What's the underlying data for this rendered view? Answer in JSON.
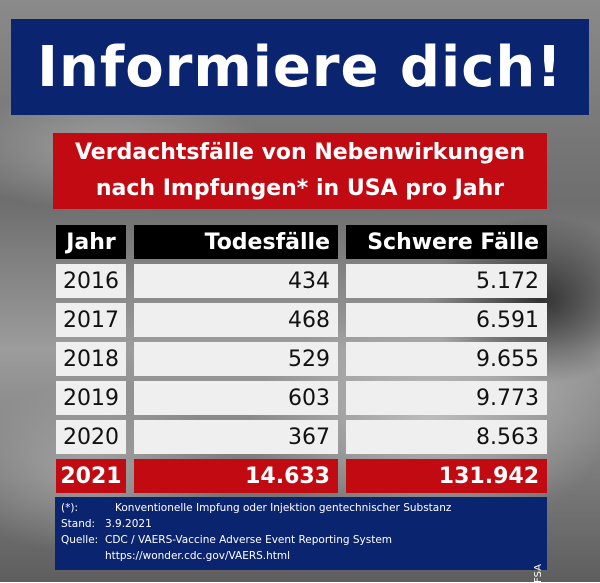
{
  "title": "Informiere dich!",
  "subtitle": {
    "line1": "Verdachtsfälle von Nebenwirkungen",
    "line2": "nach Impfungen* in USA pro Jahr"
  },
  "table": {
    "headers": [
      "Jahr",
      "Todesfälle",
      "Schwere Fälle"
    ],
    "rows": [
      {
        "year": "2016",
        "deaths": "434",
        "serious": "5.172"
      },
      {
        "year": "2017",
        "deaths": "468",
        "serious": "6.591"
      },
      {
        "year": "2018",
        "deaths": "529",
        "serious": "9.655"
      },
      {
        "year": "2019",
        "deaths": "603",
        "serious": "9.773"
      },
      {
        "year": "2020",
        "deaths": "367",
        "serious": "8.563"
      },
      {
        "year": "2021",
        "deaths": "14.633",
        "serious": "131.942"
      }
    ]
  },
  "footer": {
    "note_marker": "(*):",
    "note_text": "Konventionelle Impfung oder Injektion gentechnischer Substanz",
    "stand_label": "Stand:",
    "stand_value": "3.9.2021",
    "source_label": "Quelle:",
    "source_value": "CDC / VAERS-Vaccine Adverse Event Reporting System",
    "source_url": "https://wonder.cdc.gov/VAERS.html",
    "side_mark": "FSA"
  },
  "colors": {
    "navy": "#0b2470",
    "red": "#c20a12",
    "header_black": "#000000",
    "cell_light": "#efefef"
  }
}
